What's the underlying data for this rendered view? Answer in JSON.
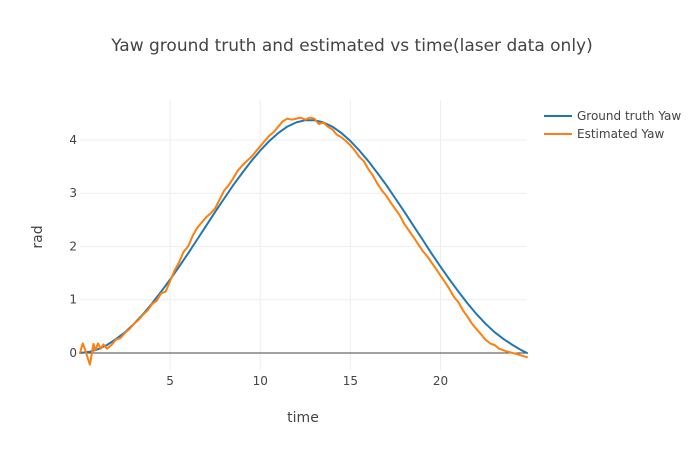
{
  "chart_data": {
    "type": "line",
    "title": "Yaw ground truth and estimated vs time(laser data only)",
    "xlabel": "time",
    "ylabel": "rad",
    "xlim": [
      0,
      24.8
    ],
    "ylim": [
      -0.32,
      4.75
    ],
    "xticks": [
      5,
      10,
      15,
      20
    ],
    "yticks": [
      0,
      1,
      2,
      3,
      4
    ],
    "grid": true,
    "legend_position": "top-right",
    "series": [
      {
        "name": "Ground truth Yaw",
        "color": "#1f77b4",
        "x": [
          0,
          0.5,
          1,
          1.5,
          2,
          2.5,
          3,
          3.5,
          4,
          4.5,
          5,
          5.5,
          6,
          6.5,
          7,
          7.5,
          8,
          8.5,
          9,
          9.5,
          10,
          10.5,
          11,
          11.5,
          12,
          12.5,
          13,
          13.5,
          14,
          14.5,
          15,
          15.5,
          16,
          16.5,
          17,
          17.5,
          18,
          18.5,
          19,
          19.5,
          20,
          20.5,
          21,
          21.5,
          22,
          22.5,
          23,
          23.5,
          24,
          24.5,
          24.8
        ],
        "y": [
          0.0,
          0.02,
          0.07,
          0.15,
          0.26,
          0.39,
          0.55,
          0.73,
          0.93,
          1.15,
          1.38,
          1.62,
          1.87,
          2.13,
          2.39,
          2.65,
          2.9,
          3.15,
          3.38,
          3.6,
          3.8,
          3.98,
          4.13,
          4.25,
          4.33,
          4.37,
          4.37,
          4.33,
          4.25,
          4.13,
          3.98,
          3.8,
          3.6,
          3.38,
          3.15,
          2.9,
          2.65,
          2.39,
          2.13,
          1.87,
          1.62,
          1.38,
          1.15,
          0.93,
          0.73,
          0.55,
          0.39,
          0.26,
          0.15,
          0.05,
          0.0
        ]
      },
      {
        "name": "Estimated Yaw",
        "color": "#ff7f0e",
        "x": [
          0,
          0.15,
          0.3,
          0.45,
          0.55,
          0.65,
          0.75,
          0.85,
          1.0,
          1.15,
          1.3,
          1.5,
          1.75,
          2.0,
          2.25,
          2.5,
          2.75,
          3.0,
          3.25,
          3.5,
          3.75,
          4.0,
          4.25,
          4.5,
          4.75,
          5.0,
          5.25,
          5.5,
          5.75,
          6.0,
          6.25,
          6.5,
          6.75,
          7.0,
          7.25,
          7.5,
          7.75,
          8.0,
          8.25,
          8.5,
          8.75,
          9.0,
          9.25,
          9.5,
          9.75,
          10.0,
          10.25,
          10.5,
          10.75,
          11.0,
          11.25,
          11.5,
          11.75,
          12.0,
          12.25,
          12.5,
          12.75,
          13.0,
          13.25,
          13.5,
          13.75,
          14.0,
          14.25,
          14.5,
          14.75,
          15.0,
          15.25,
          15.5,
          15.75,
          16.0,
          16.25,
          16.5,
          16.75,
          17.0,
          17.25,
          17.5,
          17.75,
          18.0,
          18.25,
          18.5,
          18.75,
          19.0,
          19.25,
          19.5,
          19.75,
          20.0,
          20.25,
          20.5,
          20.75,
          21.0,
          21.25,
          21.5,
          21.75,
          22.0,
          22.25,
          22.5,
          22.75,
          23.0,
          23.25,
          23.5,
          23.75,
          24.0,
          24.25,
          24.5,
          24.8
        ],
        "y": [
          0.0,
          0.18,
          0.05,
          -0.12,
          -0.22,
          -0.02,
          0.17,
          0.05,
          0.18,
          0.08,
          0.16,
          0.08,
          0.15,
          0.25,
          0.28,
          0.38,
          0.45,
          0.55,
          0.62,
          0.72,
          0.8,
          0.92,
          0.98,
          1.12,
          1.15,
          1.35,
          1.55,
          1.7,
          1.9,
          2.0,
          2.2,
          2.35,
          2.45,
          2.55,
          2.62,
          2.72,
          2.88,
          3.05,
          3.15,
          3.28,
          3.42,
          3.52,
          3.6,
          3.68,
          3.78,
          3.88,
          3.98,
          4.08,
          4.15,
          4.25,
          4.35,
          4.4,
          4.38,
          4.4,
          4.42,
          4.38,
          4.42,
          4.4,
          4.3,
          4.33,
          4.25,
          4.2,
          4.1,
          4.05,
          3.98,
          3.9,
          3.8,
          3.68,
          3.6,
          3.45,
          3.33,
          3.18,
          3.05,
          2.95,
          2.82,
          2.7,
          2.58,
          2.42,
          2.3,
          2.18,
          2.05,
          1.92,
          1.82,
          1.7,
          1.58,
          1.45,
          1.33,
          1.2,
          1.05,
          0.95,
          0.8,
          0.68,
          0.55,
          0.45,
          0.35,
          0.25,
          0.18,
          0.15,
          0.08,
          0.05,
          0.02,
          0.0,
          -0.02,
          -0.05,
          -0.08
        ]
      }
    ]
  }
}
